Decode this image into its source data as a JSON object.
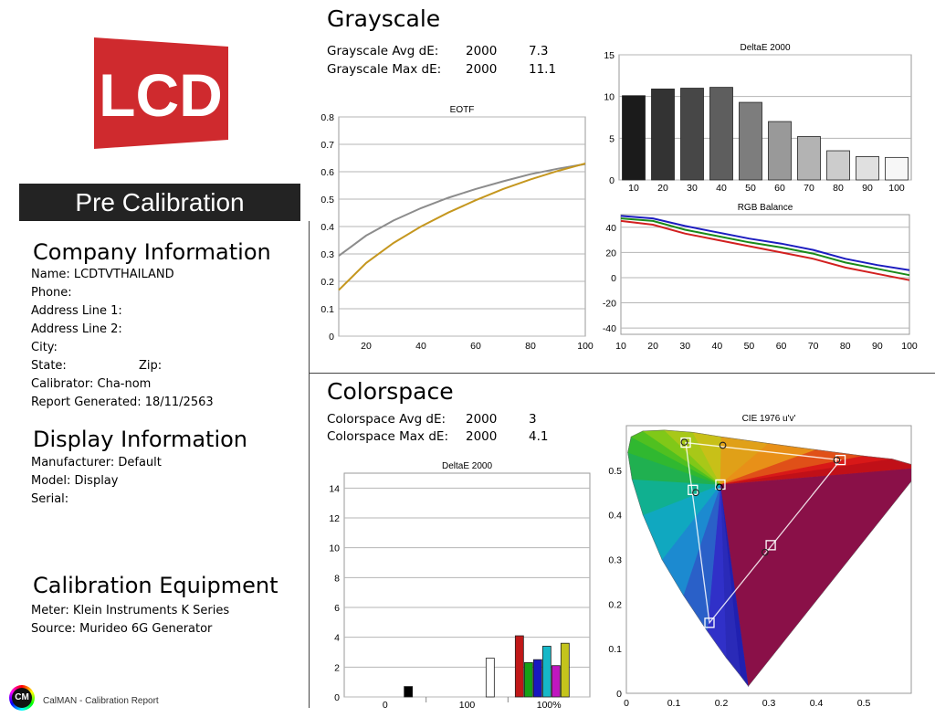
{
  "logo": {
    "text": "LCD",
    "color": "#cf2a2e"
  },
  "banner": {
    "title": "Pre Calibration"
  },
  "company": {
    "heading": "Company Information",
    "lines": [
      "Name: LCDTVTHAILAND",
      "Phone:",
      "Address Line 1:",
      "Address Line 2:",
      "City:",
      "State:",
      "Zip:",
      "Calibrator: Cha-nom",
      "Report Generated: 18/11/2563"
    ]
  },
  "display": {
    "heading": "Display Information",
    "lines": [
      "Manufacturer: Default",
      "Model: Display",
      "Serial:"
    ]
  },
  "equipment": {
    "heading": "Calibration Equipment",
    "lines": [
      "Meter: Klein Instruments K Series",
      "Source: Murideo 6G Generator"
    ]
  },
  "footer": {
    "badge": "CM",
    "text": "CalMAN - Calibration Report"
  },
  "grayscale": {
    "title": "Grayscale",
    "avg": {
      "label": "Grayscale Avg dE:",
      "standard": "2000",
      "value": "7.3"
    },
    "max": {
      "label": "Grayscale Max dE:",
      "standard": "2000",
      "value": "11.1"
    }
  },
  "colorspace": {
    "title": "Colorspace",
    "avg": {
      "label": "Colorspace Avg dE:",
      "standard": "2000",
      "value": "3"
    },
    "max": {
      "label": "Colorspace Max dE:",
      "standard": "2000",
      "value": "4.1"
    }
  },
  "chart_data": [
    {
      "id": "grayscale_de",
      "type": "bar",
      "title": "DeltaE 2000",
      "categories": [
        "10",
        "20",
        "30",
        "40",
        "50",
        "60",
        "70",
        "80",
        "90",
        "100"
      ],
      "values": [
        10.1,
        10.9,
        11.0,
        11.1,
        9.3,
        7.0,
        5.2,
        3.5,
        2.8,
        2.7
      ],
      "colors": [
        "#1b1b1b",
        "#333333",
        "#474747",
        "#5e5e5e",
        "#7d7d7d",
        "#999999",
        "#b3b3b3",
        "#cccccc",
        "#e0e0e0",
        "#f7f7f7"
      ],
      "ylim": [
        0,
        15
      ],
      "yticks": [
        0,
        5,
        10,
        15
      ],
      "grid": true
    },
    {
      "id": "eotf",
      "type": "line",
      "title": "EOTF",
      "x": [
        10,
        20,
        30,
        40,
        50,
        60,
        70,
        80,
        90,
        100
      ],
      "series": [
        {
          "values": [
            0.293,
            0.367,
            0.422,
            0.467,
            0.505,
            0.537,
            0.565,
            0.591,
            0.611,
            0.628
          ],
          "color": "#8c8c8c"
        },
        {
          "values": [
            0.168,
            0.267,
            0.34,
            0.4,
            0.451,
            0.496,
            0.537,
            0.572,
            0.603,
            0.63
          ],
          "color": "#c5971f"
        }
      ],
      "xlim": [
        10,
        100
      ],
      "ylim": [
        0,
        0.8
      ],
      "xticks": [
        20,
        40,
        60,
        80,
        100
      ],
      "yticks": [
        0,
        0.1,
        0.2,
        0.3,
        0.4,
        0.5,
        0.6,
        0.7,
        0.8
      ],
      "grid": true
    },
    {
      "id": "rgb_balance",
      "type": "line",
      "title": "RGB Balance",
      "x": [
        10,
        20,
        30,
        40,
        50,
        60,
        70,
        80,
        90,
        100
      ],
      "series": [
        {
          "values": [
            49,
            47,
            41,
            36,
            31,
            27,
            22,
            15,
            10,
            6
          ],
          "color": "#1c1cc0"
        },
        {
          "values": [
            47,
            45,
            38,
            33,
            28,
            24,
            19,
            12,
            7,
            2
          ],
          "color": "#1a8a1a"
        },
        {
          "values": [
            45,
            42,
            35,
            30,
            25,
            20,
            15,
            8,
            3,
            -2
          ],
          "color": "#d22020"
        }
      ],
      "xlim": [
        10,
        100
      ],
      "ylim": [
        -45,
        50
      ],
      "xticks": [
        10,
        20,
        30,
        40,
        50,
        60,
        70,
        80,
        90,
        100
      ],
      "yticks": [
        -40,
        -20,
        0,
        20,
        40
      ],
      "grid": true
    },
    {
      "id": "colorspace_de",
      "type": "bar",
      "title": "DeltaE 2000",
      "categories": [
        "0",
        "100",
        "100%"
      ],
      "bars": [
        {
          "group": 0,
          "value": 0.7,
          "color": "#000000"
        },
        {
          "group": 1,
          "value": 2.6,
          "color": "#ffffff"
        },
        {
          "group": 2,
          "value": 4.1,
          "color": "#c01818"
        },
        {
          "group": 2,
          "value": 2.3,
          "color": "#16a016"
        },
        {
          "group": 2,
          "value": 2.5,
          "color": "#1818c0"
        },
        {
          "group": 2,
          "value": 3.4,
          "color": "#16b8c8"
        },
        {
          "group": 2,
          "value": 2.1,
          "color": "#c016c0"
        },
        {
          "group": 2,
          "value": 3.6,
          "color": "#c4c41c"
        }
      ],
      "ylim": [
        0,
        15
      ],
      "yticks": [
        0,
        2,
        4,
        6,
        8,
        10,
        12,
        14
      ],
      "grid": true
    },
    {
      "id": "cie1976",
      "type": "scatter",
      "title": "CIE 1976 u'v'",
      "xlim": [
        0,
        0.6
      ],
      "ylim": [
        0,
        0.6
      ],
      "xticks": [
        0,
        0.1,
        0.2,
        0.3,
        0.4,
        0.5
      ],
      "yticks": [
        0,
        0.1,
        0.2,
        0.3,
        0.4,
        0.5
      ],
      "targets": [
        [
          0.451,
          0.523
        ],
        [
          0.125,
          0.562
        ],
        [
          0.175,
          0.158
        ],
        [
          0.14,
          0.456
        ],
        [
          0.304,
          0.332
        ],
        [
          0.198,
          0.468
        ]
      ],
      "measured": [
        [
          0.443,
          0.523
        ],
        [
          0.122,
          0.563
        ],
        [
          0.203,
          0.556
        ],
        [
          0.146,
          0.45
        ],
        [
          0.292,
          0.316
        ],
        [
          0.196,
          0.462
        ]
      ]
    }
  ]
}
